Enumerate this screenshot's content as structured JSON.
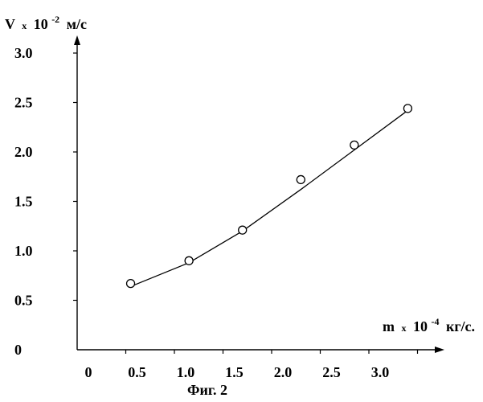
{
  "chart_data": {
    "type": "scatter",
    "title": "",
    "caption": "Фиг. 2",
    "ylabel": {
      "base": "V",
      "x": "x",
      "pow": "10",
      "exp": "-2",
      "unit": "м/с"
    },
    "xlabel": {
      "base": "m",
      "x": "x",
      "pow": "10",
      "exp": "-4",
      "unit": "кг/с."
    },
    "xlim": [
      0,
      3.5
    ],
    "ylim": [
      0,
      3.0
    ],
    "x_ticks": [
      0,
      0.5,
      1.0,
      1.5,
      2.0,
      2.5,
      3.0
    ],
    "x_tick_labels": [
      "0",
      "0.5",
      "1.0",
      "1.5",
      "2.0",
      "2.5",
      "3.0"
    ],
    "y_ticks": [
      0,
      0.5,
      1.0,
      1.5,
      2.0,
      2.5,
      3.0
    ],
    "y_tick_labels": [
      "0",
      "0.5",
      "1.0",
      "1.5",
      "2.0",
      "2.5",
      "3.0"
    ],
    "grid": false,
    "series": [
      {
        "markers": "open-circle",
        "x": [
          0.55,
          1.15,
          1.7,
          2.3,
          2.85,
          3.4
        ],
        "y": [
          0.67,
          0.9,
          1.21,
          1.72,
          2.07,
          2.44
        ]
      }
    ],
    "fit_line": {
      "x": [
        0.55,
        1.15,
        1.7,
        2.3,
        2.85,
        3.4
      ],
      "y": [
        0.64,
        0.88,
        1.2,
        1.62,
        2.02,
        2.42
      ]
    }
  }
}
